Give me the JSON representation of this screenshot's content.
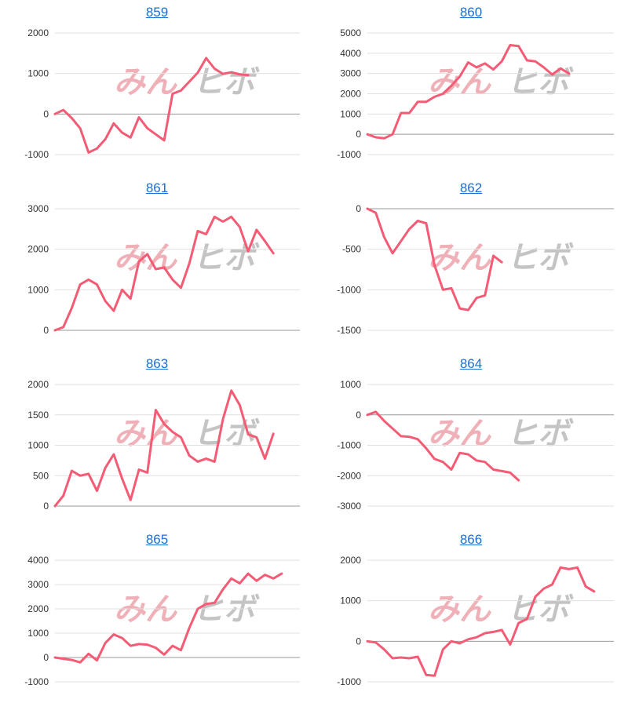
{
  "colors": {
    "line": "#f45b75",
    "title": "#1a6fd0",
    "grid": "#e0e0e0",
    "axis": "#999999",
    "watermark_pink": "#f0b0b8",
    "watermark_gray": "#c4c4c4"
  },
  "watermark": {
    "left": "みん",
    "right": "ヒボ"
  },
  "chart_data": [
    {
      "type": "line",
      "title": "859",
      "yticks": [
        -1000,
        0,
        1000,
        2000
      ],
      "ylim": [
        -1000,
        2000
      ],
      "series": [
        {
          "values": [
            0,
            100,
            -100,
            -350,
            -950,
            -850,
            -620,
            -230,
            -460,
            -580,
            -80,
            -350,
            -500,
            -650,
            500,
            580,
            800,
            1020,
            1380,
            1120,
            990,
            1030,
            980,
            960
          ]
        }
      ]
    },
    {
      "type": "line",
      "title": "860",
      "yticks": [
        -1000,
        0,
        1000,
        2000,
        3000,
        4000,
        5000
      ],
      "ylim": [
        -1000,
        5000
      ],
      "series": [
        {
          "values": [
            0,
            -150,
            -200,
            0,
            1050,
            1050,
            1600,
            1600,
            1850,
            2000,
            2400,
            2850,
            3550,
            3300,
            3500,
            3200,
            3600,
            4400,
            4350,
            3650,
            3600,
            3300,
            2950,
            3250,
            3000
          ]
        }
      ]
    },
    {
      "type": "line",
      "title": "861",
      "yticks": [
        0,
        1000,
        2000,
        3000
      ],
      "ylim": [
        0,
        3000
      ],
      "series": [
        {
          "values": [
            0,
            80,
            550,
            1130,
            1250,
            1130,
            720,
            480,
            1000,
            780,
            1700,
            1880,
            1510,
            1550,
            1250,
            1050,
            1650,
            2450,
            2370,
            2800,
            2680,
            2800,
            2550,
            1950,
            2480,
            2200,
            1900
          ]
        }
      ]
    },
    {
      "type": "line",
      "title": "862",
      "yticks": [
        -1500,
        -1000,
        -500,
        0
      ],
      "ylim": [
        -1500,
        0
      ],
      "series": [
        {
          "values": [
            0,
            -50,
            -350,
            -550,
            -400,
            -250,
            -150,
            -180,
            -700,
            -1000,
            -980,
            -1230,
            -1250,
            -1100,
            -1070,
            -580,
            -660
          ]
        }
      ]
    },
    {
      "type": "line",
      "title": "863",
      "yticks": [
        0,
        500,
        1000,
        1500,
        2000
      ],
      "ylim": [
        0,
        2000
      ],
      "series": [
        {
          "values": [
            0,
            170,
            580,
            500,
            530,
            250,
            630,
            850,
            450,
            100,
            600,
            550,
            1580,
            1350,
            1220,
            1130,
            830,
            730,
            780,
            730,
            1430,
            1900,
            1660,
            1180,
            1130,
            780,
            1190
          ]
        }
      ]
    },
    {
      "type": "line",
      "title": "864",
      "yticks": [
        -3000,
        -2000,
        -1000,
        0,
        1000
      ],
      "ylim": [
        -3000,
        1000
      ],
      "series": [
        {
          "values": [
            0,
            100,
            -200,
            -450,
            -700,
            -720,
            -800,
            -1100,
            -1450,
            -1550,
            -1800,
            -1250,
            -1300,
            -1500,
            -1550,
            -1800,
            -1850,
            -1900,
            -2150
          ]
        }
      ]
    },
    {
      "type": "line",
      "title": "865",
      "yticks": [
        -1000,
        0,
        1000,
        2000,
        3000,
        4000
      ],
      "ylim": [
        -1000,
        4000
      ],
      "series": [
        {
          "values": [
            0,
            -50,
            -100,
            -200,
            150,
            -120,
            600,
            950,
            800,
            480,
            550,
            530,
            400,
            120,
            480,
            300,
            1220,
            2000,
            2200,
            2250,
            2800,
            3250,
            3050,
            3450,
            3150,
            3400,
            3250,
            3450
          ]
        }
      ]
    },
    {
      "type": "line",
      "title": "866",
      "yticks": [
        -1000,
        0,
        1000,
        2000
      ],
      "ylim": [
        -1000,
        2000
      ],
      "series": [
        {
          "values": [
            0,
            -30,
            -200,
            -420,
            -400,
            -420,
            -380,
            -830,
            -850,
            -200,
            0,
            -50,
            50,
            100,
            200,
            230,
            280,
            -80,
            450,
            550,
            1100,
            1300,
            1400,
            1820,
            1780,
            1820,
            1350,
            1230
          ]
        }
      ]
    }
  ]
}
